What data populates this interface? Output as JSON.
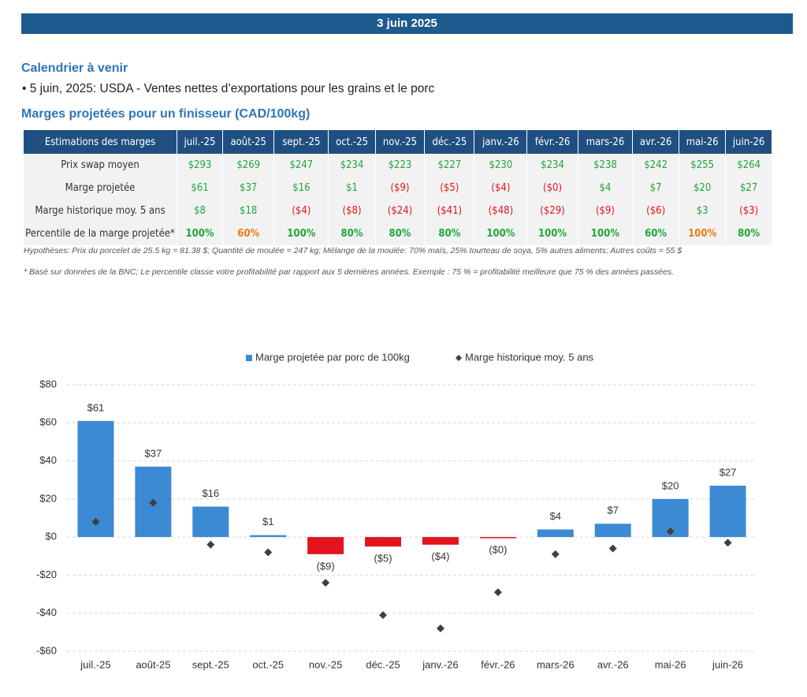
{
  "header": {
    "date": "3 juin 2025"
  },
  "calendar": {
    "title": "Calendrier à venir",
    "items": [
      "5 juin, 2025: USDA - Ventes nettes d’exportations pour les grains et le porc"
    ]
  },
  "margins": {
    "title": "Marges projetées pour un finisseur (CAD/100kg)"
  },
  "table": {
    "header": [
      "Estimations des marges",
      "juil.-25",
      "août-25",
      "sept.-25",
      "oct.-25",
      "nov.-25",
      "déc.-25",
      "janv.-26",
      "févr.-26",
      "mars-26",
      "avr.-26",
      "mai-26",
      "juin-26"
    ],
    "palette": {
      "g": "#1fa83a",
      "r": "#e3141e",
      "o": "#f07a10"
    },
    "rows": [
      {
        "label": "Prix swap moyen",
        "cells": [
          "$293",
          "$269",
          "$247",
          "$234",
          "$223",
          "$227",
          "$230",
          "$234",
          "$238",
          "$242",
          "$255",
          "$264"
        ],
        "colors": "gggggggggggg"
      },
      {
        "label": "Marge projetée",
        "cells": [
          "$61",
          "$37",
          "$16",
          "$1",
          "($9)",
          "($5)",
          "($4)",
          "($0)",
          "$4",
          "$7",
          "$20",
          "$27"
        ],
        "colors": "ggggrrrrgggg"
      },
      {
        "label": "Marge historique moy. 5 ans",
        "cells": [
          "$8",
          "$18",
          "($4)",
          "($8)",
          "($24)",
          "($41)",
          "($48)",
          "($29)",
          "($9)",
          "($6)",
          "$3",
          "($3)"
        ],
        "colors": "ggrrrrrrrrgr"
      },
      {
        "label": "Percentile de la marge projetée*",
        "cells": [
          "100%",
          "60%",
          "100%",
          "80%",
          "80%",
          "80%",
          "100%",
          "100%",
          "100%",
          "60%",
          "100%",
          "80%"
        ],
        "colors": "goggggggggog"
      }
    ]
  },
  "notes": [
    "Hypothèses: Prix du porcelet de 25.5 kg = 81.38 $; Quantité de moulée = 247 kg; Mélange de la moulée: 70% maïs, 25% tourteau de soya, 5% autres aliments; Autres coûts = 55 $",
    "* Basé sur données de la BNC; Le percentile classe votre profitabilité par rapport aux 5 dernières années. Exemple : 75 % = profitabilité meilleure que 75 % des années passées."
  ],
  "chart_data": {
    "type": "bar",
    "categories": [
      "juil.-25",
      "août-25",
      "sept.-25",
      "oct.-25",
      "nov.-25",
      "déc.-25",
      "janv.-26",
      "févr.-26",
      "mars-26",
      "avr.-26",
      "mai-26",
      "juin-26"
    ],
    "series": [
      {
        "name": "Marge projetée par porc de 100kg",
        "type": "bar",
        "color": "#3c8ad4",
        "negative_color": "#e3141e",
        "values": [
          61,
          37,
          16,
          1,
          -9,
          -5,
          -4,
          -0.3,
          4,
          7,
          20,
          27
        ],
        "value_labels": [
          "$61",
          "$37",
          "$16",
          "$1",
          "($9)",
          "($5)",
          "($4)",
          "($0)",
          "$4",
          "$7",
          "$20",
          "$27"
        ]
      },
      {
        "name": "Marge historique moy. 5 ans",
        "type": "scatter",
        "color": "#404040",
        "values": [
          8,
          18,
          -4,
          -8,
          -24,
          -41,
          -48,
          -29,
          -9,
          -6,
          3,
          -3
        ]
      }
    ],
    "ylim": [
      -60,
      80
    ],
    "yticks": [
      {
        "value": -60,
        "label": "-$60"
      },
      {
        "value": -40,
        "label": "-$40"
      },
      {
        "value": -20,
        "label": "-$20"
      },
      {
        "value": 0,
        "label": "$0"
      },
      {
        "value": 20,
        "label": "$20"
      },
      {
        "value": 40,
        "label": "$40"
      },
      {
        "value": 60,
        "label": "$60"
      },
      {
        "value": 80,
        "label": "$80"
      }
    ],
    "grid": true
  }
}
